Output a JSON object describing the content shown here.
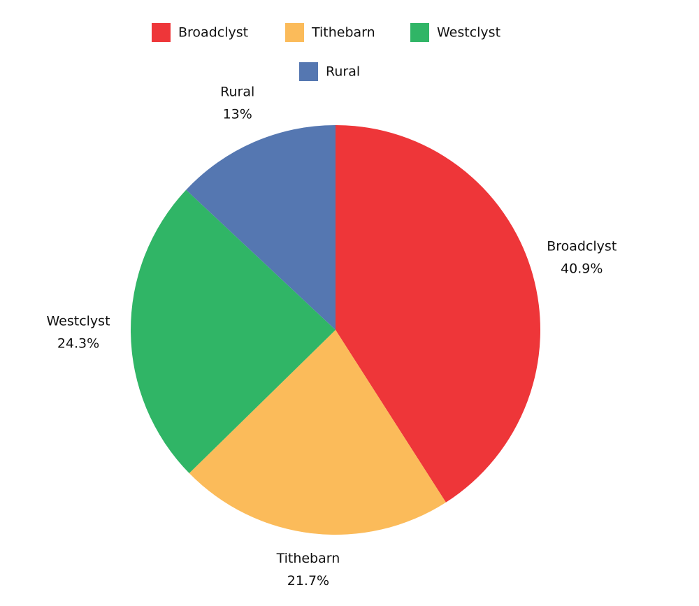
{
  "chart_data": {
    "type": "pie",
    "categories": [
      "Broadclyst",
      "Tithebarn",
      "Westclyst",
      "Rural"
    ],
    "values": [
      40.9,
      21.7,
      24.3,
      13
    ],
    "value_labels": [
      "40.9%",
      "21.7%",
      "24.3%",
      "13%"
    ],
    "colors": [
      "#ee3639",
      "#fbbb5a",
      "#30b566",
      "#5577b1"
    ],
    "legend": "top"
  }
}
